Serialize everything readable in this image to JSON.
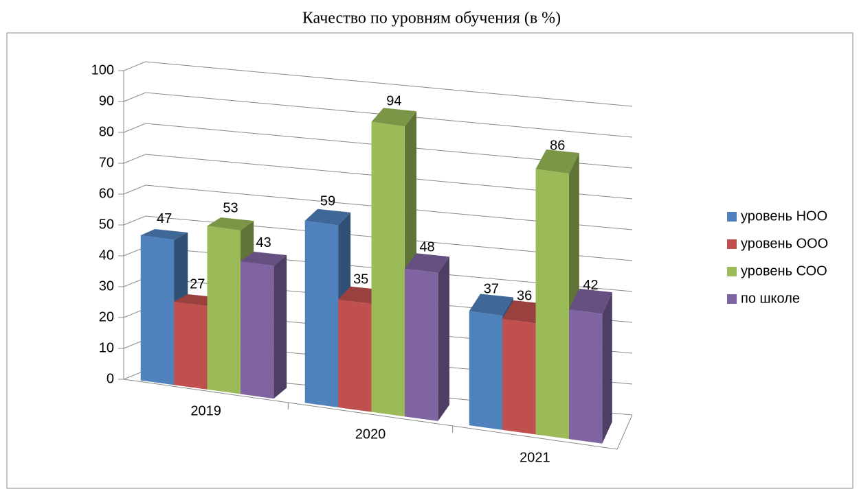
{
  "chart_data": {
    "type": "bar3d",
    "title": "Качество по уровням обучения (в %)",
    "categories": [
      "2019",
      "2020",
      "2021"
    ],
    "series": [
      {
        "name": "уровень НОО",
        "color": "#4f81bd",
        "values": [
          47,
          59,
          37
        ]
      },
      {
        "name": "уровень ООО",
        "color": "#c0504d",
        "values": [
          27,
          35,
          36
        ]
      },
      {
        "name": "уровень СОО",
        "color": "#9bbb59",
        "values": [
          53,
          94,
          86
        ]
      },
      {
        "name": "по школе",
        "color": "#8064a2",
        "values": [
          43,
          48,
          42
        ]
      }
    ],
    "ylim": [
      0,
      100
    ],
    "yticks": [
      0,
      10,
      20,
      30,
      40,
      50,
      60,
      70,
      80,
      90,
      100
    ],
    "grid": true,
    "legend": "right"
  }
}
